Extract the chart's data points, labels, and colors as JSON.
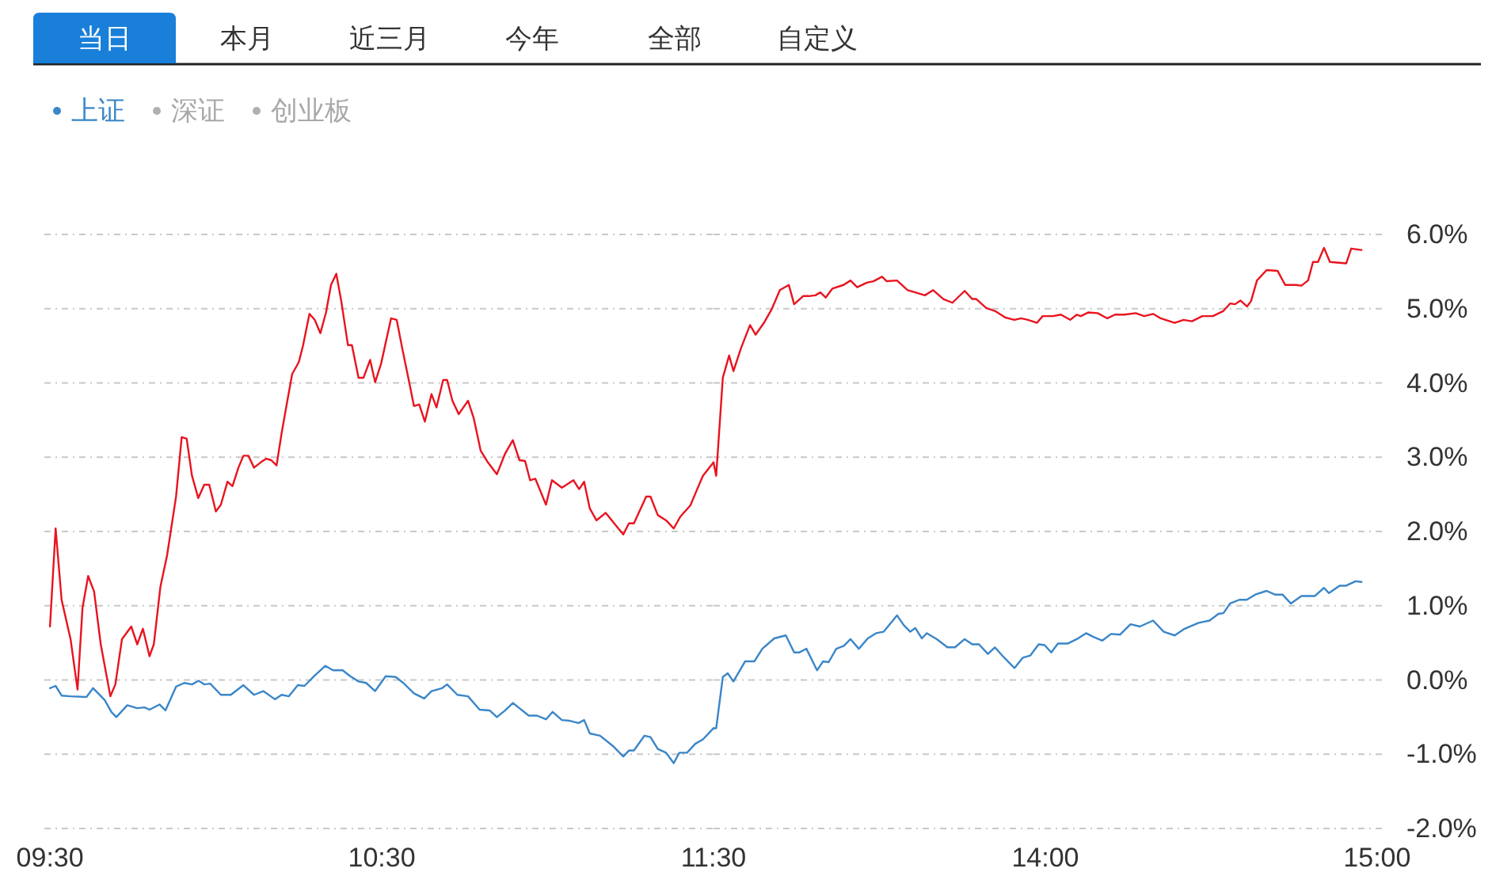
{
  "chart_data": [
    {
      "type": "line",
      "annotations": [
        "当日",
        "本月",
        "近三月",
        "今年",
        "全部",
        "自定义",
        "深证",
        "创业板"
      ],
      "legend": "top left",
      "grid": "y",
      "tick_labels": "x",
      "xlim": [
        9.483,
        11.5
      ],
      "xticks": [
        {
          "value": 9.5,
          "label": "09:30"
        },
        {
          "value": 10.5,
          "label": "10:30"
        },
        {
          "value": 11.5,
          "label": "11:30"
        }
      ],
      "ylim": [
        -2,
        6
      ],
      "yticks": [
        {
          "value": 6,
          "label": null
        },
        {
          "value": 5,
          "label": null
        },
        {
          "value": 4,
          "label": null
        },
        {
          "value": 3,
          "label": null
        },
        {
          "value": 2,
          "label": null
        },
        {
          "value": 1,
          "label": null
        },
        {
          "value": 0,
          "label": null
        },
        {
          "value": -1,
          "label": null
        },
        {
          "value": -2,
          "label": null
        }
      ],
      "series": [
        {
          "color": "#e8141f",
          "x": [
            9.5,
            9.517,
            9.535,
            9.562,
            9.583,
            9.598,
            9.615,
            9.633,
            9.653,
            9.682,
            9.697,
            9.717,
            9.745,
            9.763,
            9.78,
            9.8,
            9.813,
            9.833,
            9.853,
            9.88,
            9.897,
            9.912,
            9.928,
            9.947,
            9.965,
            9.98,
            10,
            10.015,
            10.035,
            10.05,
            10.068,
            10.083,
            10.098,
            10.115,
            10.135,
            10.152,
            10.167,
            10.183,
            10.198,
            10.215,
            10.23,
            10.25,
            10.263,
            10.282,
            10.298,
            10.315,
            10.332,
            10.347,
            10.363,
            10.378,
            10.398,
            10.41,
            10.43,
            10.445,
            10.465,
            10.48,
            10.498,
            10.528,
            10.545,
            10.562,
            10.58,
            10.597,
            10.613,
            10.63,
            10.65,
            10.665,
            10.685,
            10.697,
            10.713,
            10.732,
            10.76,
            10.777,
            10.798,
            10.82,
            10.847,
            10.872,
            10.895,
            10.915,
            10.932,
            10.947,
            10.963,
            10.995,
            11.013,
            11.043,
            11.078,
            11.095,
            11.11,
            11.127,
            11.147,
            11.175,
            11.202,
            11.228,
            11.245,
            11.26,
            11.297,
            11.31,
            11.332,
            11.357,
            11.38,
            11.4,
            11.43,
            11.448,
            11.468,
            11.5
          ],
          "values": [
            0.72,
            2.04,
            1.08,
            0.55,
            -0.13,
            0.97,
            1.4,
            1.19,
            0.48,
            -0.22,
            -0.06,
            0.55,
            0.72,
            0.48,
            0.69,
            0.32,
            0.48,
            1.26,
            1.68,
            2.47,
            3.27,
            3.25,
            2.75,
            2.45,
            2.63,
            2.63,
            2.27,
            2.36,
            2.67,
            2.61,
            2.86,
            3.02,
            3.02,
            2.86,
            2.93,
            2.98,
            2.96,
            2.89,
            3.32,
            3.75,
            4.12,
            4.28,
            4.51,
            4.93,
            4.85,
            4.67,
            4.95,
            5.32,
            5.47,
            5.1,
            4.51,
            4.51,
            4.07,
            4.07,
            4.31,
            4.01,
            4.26,
            4.87,
            4.85,
            4.46,
            4.07,
            3.69,
            3.71,
            3.48,
            3.85,
            3.67,
            4.04,
            4.04,
            3.76,
            3.58,
            3.76,
            3.53,
            3.09,
            2.93,
            2.77,
            3.05,
            3.23,
            2.96,
            2.95,
            2.69,
            2.71,
            2.36,
            2.69,
            2.59,
            2.69,
            2.57,
            2.67,
            2.31,
            2.15,
            2.25,
            2.1,
            1.96,
            2.11,
            2.11,
            2.47,
            2.47,
            2.22,
            2.15,
            2.04,
            2.2,
            2.35,
            2.54,
            2.75,
            2.93
          ]
        },
        {
          "name": "上证",
          "color": "#3a86c8",
          "x": [
            9.5,
            9.517,
            9.535,
            9.562,
            9.61,
            9.63,
            9.665,
            9.685,
            9.7,
            9.733,
            9.763,
            9.785,
            9.8,
            9.83,
            9.848,
            9.88,
            9.905,
            9.928,
            9.948,
            9.965,
            9.983,
            10.015,
            10.045,
            10.083,
            10.115,
            10.143,
            10.178,
            10.198,
            10.22,
            10.247,
            10.267,
            10.298,
            10.33,
            10.353,
            10.382,
            10.405,
            10.43,
            10.453,
            10.48,
            10.512,
            10.542,
            10.565,
            10.597,
            10.628,
            10.65,
            10.682,
            10.697,
            10.728,
            10.76,
            10.795,
            10.825,
            10.847,
            10.872,
            10.895,
            10.915,
            10.943,
            10.968,
            10.995,
            11.015,
            11.043,
            11.067,
            11.093,
            11.11,
            11.127,
            11.158,
            11.197,
            11.228,
            11.245,
            11.26,
            11.292,
            11.31,
            11.332,
            11.357,
            11.38,
            11.397,
            11.42,
            11.445,
            11.468,
            11.5
          ],
          "values": [
            -0.11,
            -0.08,
            -0.21,
            -0.22,
            -0.23,
            -0.11,
            -0.27,
            -0.43,
            -0.5,
            -0.34,
            -0.38,
            -0.37,
            -0.4,
            -0.33,
            -0.41,
            -0.09,
            -0.04,
            -0.06,
            -0.01,
            -0.06,
            -0.05,
            -0.2,
            -0.2,
            -0.07,
            -0.2,
            -0.15,
            -0.26,
            -0.2,
            -0.22,
            -0.07,
            -0.08,
            0.06,
            0.19,
            0.13,
            0.13,
            0.05,
            -0.02,
            -0.04,
            -0.15,
            0.05,
            0.04,
            -0.04,
            -0.18,
            -0.25,
            -0.15,
            -0.11,
            -0.06,
            -0.2,
            -0.22,
            -0.4,
            -0.41,
            -0.5,
            -0.41,
            -0.31,
            -0.38,
            -0.48,
            -0.48,
            -0.53,
            -0.43,
            -0.54,
            -0.55,
            -0.58,
            -0.54,
            -0.72,
            -0.75,
            -0.89,
            -1.03,
            -0.95,
            -0.95,
            -0.75,
            -0.77,
            -0.93,
            -0.98,
            -1.12,
            -0.98,
            -0.98,
            -0.86,
            -0.8,
            -0.65
          ]
        }
      ]
    },
    {
      "type": "line",
      "grid": "y",
      "xlim": [
        13,
        15.017
      ],
      "xticks": [
        {
          "value": 14,
          "label": "14:00"
        },
        {
          "value": 15,
          "label": "15:00"
        }
      ],
      "ylim": [
        -2,
        6
      ],
      "yticks": [
        {
          "value": 6,
          "label": "6.0%"
        },
        {
          "value": 5,
          "label": "5.0%"
        },
        {
          "value": 4,
          "label": "4.0%"
        },
        {
          "value": 3,
          "label": "3.0%"
        },
        {
          "value": 2,
          "label": "2.0%"
        },
        {
          "value": 1,
          "label": "1.0%"
        },
        {
          "value": 0,
          "label": "0.0%"
        },
        {
          "value": -1,
          "label": "-1.0%"
        },
        {
          "value": -2,
          "label": "-2.0%"
        }
      ],
      "series": [
        {
          "color": "#e8141f",
          "x": [
            13,
            13.008,
            13.028,
            13.047,
            13.06,
            13.083,
            13.11,
            13.127,
            13.152,
            13.175,
            13.2,
            13.227,
            13.243,
            13.27,
            13.287,
            13.307,
            13.322,
            13.338,
            13.358,
            13.392,
            13.413,
            13.433,
            13.462,
            13.482,
            13.508,
            13.522,
            13.553,
            13.585,
            13.608,
            13.637,
            13.662,
            13.693,
            13.72,
            13.757,
            13.78,
            13.792,
            13.822,
            13.848,
            13.88,
            13.907,
            13.927,
            13.948,
            13.975,
            13.992,
            14.023,
            14.047,
            14.075,
            14.095,
            14.107,
            14.13,
            14.158,
            14.187,
            14.21,
            14.238,
            14.273,
            14.298,
            14.325,
            14.348,
            14.39,
            14.417,
            14.442,
            14.473,
            14.505,
            14.537,
            14.557,
            14.572,
            14.588,
            14.608,
            14.62,
            14.638,
            14.667,
            14.7,
            14.723,
            14.755,
            14.772,
            14.792,
            14.807,
            14.822,
            14.84,
            14.858,
            14.907,
            14.922,
            14.953
          ],
          "values": [
            2.93,
            2.75,
            4.07,
            4.37,
            4.16,
            4.47,
            4.78,
            4.65,
            4.81,
            4.99,
            5.25,
            5.32,
            5.06,
            5.17,
            5.17,
            5.18,
            5.22,
            5.15,
            5.27,
            5.32,
            5.38,
            5.29,
            5.35,
            5.37,
            5.43,
            5.37,
            5.38,
            5.25,
            5.22,
            5.18,
            5.25,
            5.13,
            5.08,
            5.24,
            5.13,
            5.13,
            5.01,
            4.97,
            4.88,
            4.85,
            4.87,
            4.85,
            4.81,
            4.9,
            4.9,
            4.92,
            4.85,
            4.92,
            4.9,
            4.95,
            4.94,
            4.87,
            4.92,
            4.92,
            4.94,
            4.9,
            4.93,
            4.87,
            4.81,
            4.85,
            4.83,
            4.9,
            4.9,
            4.97,
            5.07,
            5.06,
            5.11,
            5.03,
            5.1,
            5.38,
            5.52,
            5.51,
            5.32,
            5.32,
            5.31,
            5.38,
            5.63,
            5.63,
            5.82,
            5.63,
            5.61,
            5.81,
            5.79
          ]
        },
        {
          "color": "#3a86c8",
          "x": [
            13,
            13.008,
            13.028,
            13.043,
            13.06,
            13.095,
            13.123,
            13.147,
            13.183,
            13.218,
            13.243,
            13.258,
            13.28,
            13.312,
            13.33,
            13.347,
            13.37,
            13.393,
            13.413,
            13.438,
            13.465,
            13.49,
            13.513,
            13.553,
            13.573,
            13.593,
            13.608,
            13.628,
            13.643,
            13.673,
            13.705,
            13.728,
            13.757,
            13.78,
            13.8,
            13.827,
            13.848,
            13.872,
            13.907,
            13.932,
            13.955,
            13.98,
            13.998,
            14.018,
            14.038,
            14.067,
            14.095,
            14.123,
            14.145,
            14.172,
            14.198,
            14.225,
            14.257,
            14.285,
            14.325,
            14.357,
            14.39,
            14.42,
            14.462,
            14.495,
            14.522,
            14.537,
            14.557,
            14.585,
            14.607,
            14.633,
            14.667,
            14.692,
            14.715,
            14.74,
            14.772,
            14.812,
            14.84,
            14.855,
            14.887,
            14.907,
            14.935,
            14.953
          ],
          "values": [
            -0.65,
            -0.65,
            0.04,
            0.09,
            -0.02,
            0.25,
            0.25,
            0.42,
            0.56,
            0.6,
            0.37,
            0.37,
            0.42,
            0.13,
            0.25,
            0.24,
            0.42,
            0.46,
            0.55,
            0.42,
            0.56,
            0.63,
            0.65,
            0.87,
            0.74,
            0.65,
            0.7,
            0.56,
            0.63,
            0.55,
            0.44,
            0.44,
            0.55,
            0.48,
            0.48,
            0.35,
            0.44,
            0.32,
            0.16,
            0.3,
            0.33,
            0.48,
            0.47,
            0.37,
            0.49,
            0.49,
            0.55,
            0.63,
            0.58,
            0.53,
            0.62,
            0.61,
            0.75,
            0.72,
            0.8,
            0.65,
            0.6,
            0.69,
            0.77,
            0.8,
            0.89,
            0.9,
            1.03,
            1.08,
            1.08,
            1.15,
            1.2,
            1.15,
            1.15,
            1.03,
            1.13,
            1.13,
            1.24,
            1.17,
            1.27,
            1.27,
            1.33,
            1.32
          ]
        }
      ]
    }
  ]
}
